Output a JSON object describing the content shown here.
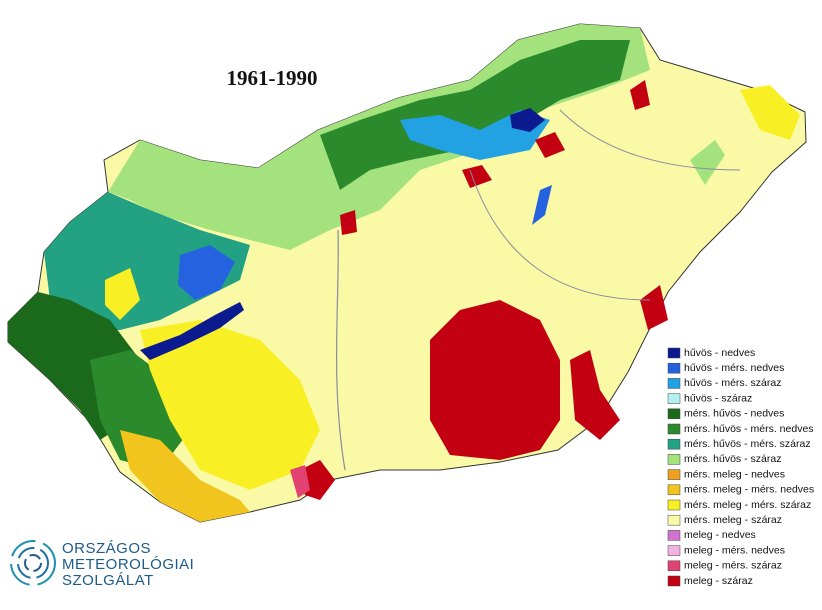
{
  "title": "1961-1990",
  "legend": [
    {
      "label": "hűvös - nedves",
      "color": "#0b1a8e"
    },
    {
      "label": "hűvös - mérs. nedves",
      "color": "#2462e0"
    },
    {
      "label": "hűvös - mérs. száraz",
      "color": "#22a2e2"
    },
    {
      "label": "hűvös - száraz",
      "color": "#b4f0f0"
    },
    {
      "label": "mérs. hűvös - nedves",
      "color": "#1b6a1b"
    },
    {
      "label": "mérs. hűvös - mérs. nedves",
      "color": "#2b8a2b"
    },
    {
      "label": "mérs. hűvös - mérs. száraz",
      "color": "#22a282"
    },
    {
      "label": "mérs. hűvös - száraz",
      "color": "#a4e27e"
    },
    {
      "label": "mérs. meleg - nedves",
      "color": "#f0a020"
    },
    {
      "label": "mérs. meleg - mérs. nedves",
      "color": "#f2c41e"
    },
    {
      "label": "mérs. meleg - mérs. száraz",
      "color": "#f8f024"
    },
    {
      "label": "mérs. meleg - száraz",
      "color": "#fafaa6"
    },
    {
      "label": "meleg - nedves",
      "color": "#d072d0"
    },
    {
      "label": "meleg - mérs. nedves",
      "color": "#f2b2e2"
    },
    {
      "label": "meleg - mérs. száraz",
      "color": "#e24272"
    },
    {
      "label": "meleg - száraz",
      "color": "#c20012"
    }
  ],
  "logo": [
    "ORSZÁGOS",
    "METEOROLÓGIAI",
    "SZOLGÁLAT"
  ]
}
